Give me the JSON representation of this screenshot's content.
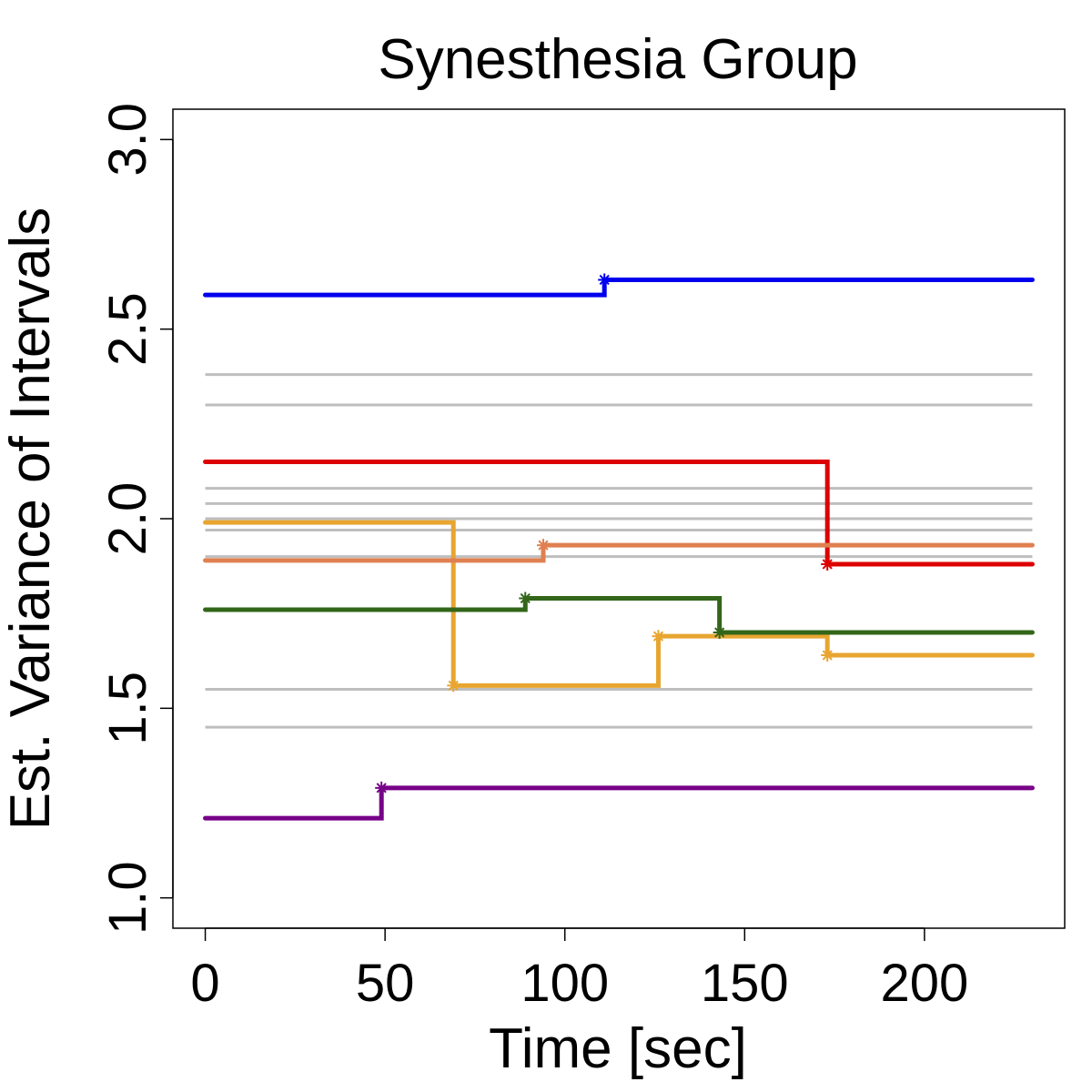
{
  "chart_data": {
    "type": "line",
    "step": true,
    "title": "Synesthesia Group",
    "xlabel": "Time [sec]",
    "ylabel": "Est. Variance of Intervals",
    "xlim": [
      -9,
      239
    ],
    "ylim": [
      0.92,
      3.08
    ],
    "xticks": [
      0,
      50,
      100,
      150,
      200
    ],
    "xtick_labels": [
      "0",
      "50",
      "100",
      "150",
      "200"
    ],
    "yticks": [
      1.0,
      1.5,
      2.0,
      2.5,
      3.0
    ],
    "ytick_labels": [
      "1.0",
      "1.5",
      "2.0",
      "2.5",
      "3.0"
    ],
    "grid": false,
    "legend": "none",
    "background_lines": {
      "color": "#bebebe",
      "x_range": [
        0,
        230
      ],
      "y_values": [
        2.38,
        2.3,
        2.08,
        2.04,
        2.0,
        1.97,
        1.9,
        1.55,
        1.45
      ]
    },
    "series": [
      {
        "color": "#0000ee",
        "points": [
          [
            0,
            2.59
          ],
          [
            111,
            2.59
          ],
          [
            111,
            2.63
          ],
          [
            230,
            2.63
          ]
        ],
        "change_points": [
          [
            111,
            2.63
          ]
        ]
      },
      {
        "color": "#dd0000",
        "points": [
          [
            0,
            2.15
          ],
          [
            173,
            2.15
          ],
          [
            173,
            1.88
          ],
          [
            230,
            1.88
          ]
        ],
        "change_points": [
          [
            173,
            1.88
          ]
        ]
      },
      {
        "color": "#e8a530",
        "points": [
          [
            0,
            1.99
          ],
          [
            69,
            1.99
          ],
          [
            69,
            1.56
          ],
          [
            126,
            1.56
          ],
          [
            126,
            1.69
          ],
          [
            173,
            1.69
          ],
          [
            173,
            1.64
          ],
          [
            230,
            1.64
          ]
        ],
        "change_points": [
          [
            69,
            1.56
          ],
          [
            126,
            1.69
          ],
          [
            173,
            1.64
          ]
        ]
      },
      {
        "color": "#e08050",
        "points": [
          [
            0,
            1.89
          ],
          [
            94,
            1.89
          ],
          [
            94,
            1.93
          ],
          [
            230,
            1.93
          ]
        ],
        "change_points": [
          [
            94,
            1.93
          ]
        ]
      },
      {
        "color": "#336619",
        "points": [
          [
            0,
            1.76
          ],
          [
            89,
            1.76
          ],
          [
            89,
            1.79
          ],
          [
            143,
            1.79
          ],
          [
            143,
            1.7
          ],
          [
            230,
            1.7
          ]
        ],
        "change_points": [
          [
            89,
            1.79
          ],
          [
            143,
            1.7
          ]
        ]
      },
      {
        "color": "#770088",
        "points": [
          [
            0,
            1.21
          ],
          [
            49,
            1.21
          ],
          [
            49,
            1.29
          ],
          [
            230,
            1.29
          ]
        ],
        "change_points": [
          [
            49,
            1.29
          ]
        ]
      }
    ]
  }
}
